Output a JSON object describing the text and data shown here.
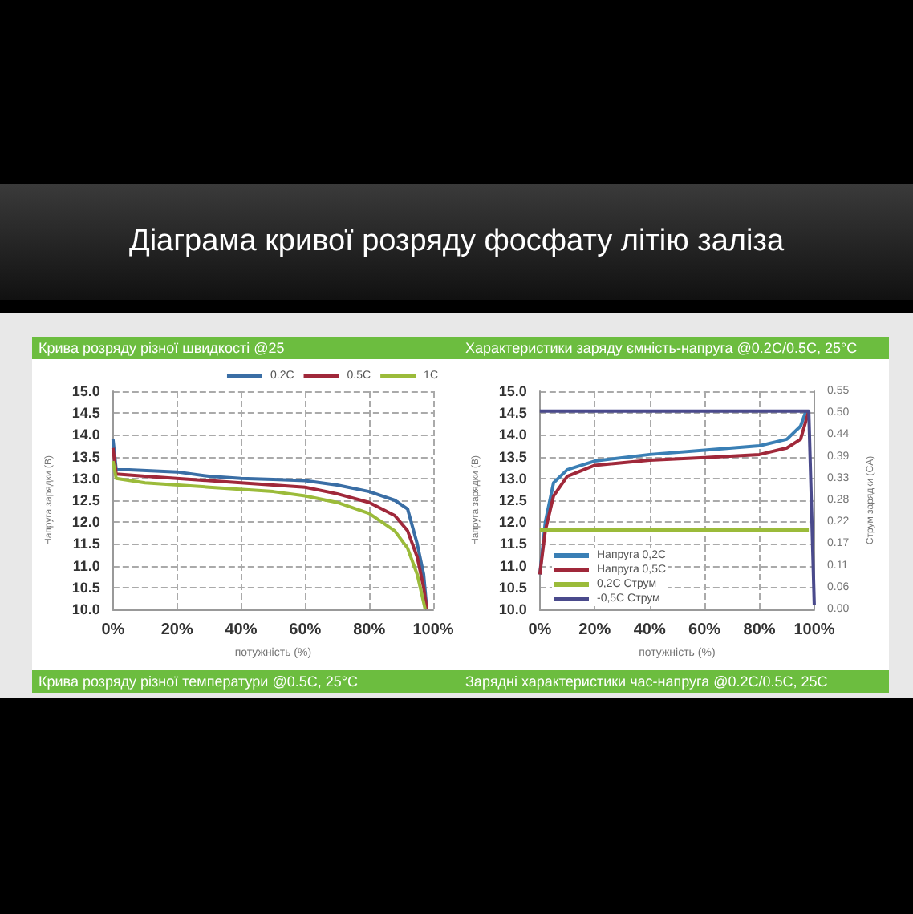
{
  "chart_data": [
    {
      "type": "line",
      "title": "Діаграма кривої розряду фосфату літію заліза",
      "subtitle": "Крива розряду різної швидкості @25",
      "annotations": [
        "Крива розряду різної температури @0.5C, 25°C"
      ],
      "xlabel": "потужність (%)",
      "ylabel": "Напруга зарядки (В)",
      "xlim": [
        0,
        100
      ],
      "xticks": [
        {
          "value": 0,
          "label": "0%"
        },
        {
          "value": 20,
          "label": "20%"
        },
        {
          "value": 40,
          "label": "40%"
        },
        {
          "value": 60,
          "label": "60%"
        },
        {
          "value": 80,
          "label": "80%"
        },
        {
          "value": 100,
          "label": "100%"
        }
      ],
      "ylim": [
        10,
        15
      ],
      "yticks": [
        {
          "value": 10,
          "label": "10.0"
        },
        {
          "value": 10.5,
          "label": "10.5"
        },
        {
          "value": 11,
          "label": "11.0"
        },
        {
          "value": 11.5,
          "label": "11.5"
        },
        {
          "value": 12,
          "label": "12.0"
        },
        {
          "value": 12.5,
          "label": "12.5"
        },
        {
          "value": 13,
          "label": "13.0"
        },
        {
          "value": 13.5,
          "label": "13.5"
        },
        {
          "value": 14,
          "label": "14.0"
        },
        {
          "value": 14.5,
          "label": "14.5"
        },
        {
          "value": 15,
          "label": "15.0"
        }
      ],
      "grid": true,
      "legend": "top right",
      "marker": "none",
      "line_style": "solid",
      "series": [
        {
          "name": "0.2C",
          "color": "#3a6ea5",
          "x": [
            0,
            1,
            5,
            20,
            30,
            40,
            50,
            60,
            70,
            80,
            88,
            92,
            95,
            97,
            98
          ],
          "values": [
            13.9,
            13.2,
            13.2,
            13.15,
            13.05,
            13.0,
            12.98,
            12.95,
            12.85,
            12.7,
            12.5,
            12.3,
            11.5,
            10.8,
            10.0
          ]
        },
        {
          "name": "0.5C",
          "color": "#a0283a",
          "x": [
            0,
            1,
            10,
            30,
            50,
            60,
            70,
            80,
            88,
            92,
            95,
            97,
            98
          ],
          "values": [
            13.7,
            13.1,
            13.05,
            12.95,
            12.85,
            12.8,
            12.65,
            12.45,
            12.15,
            11.8,
            11.2,
            10.5,
            10.0
          ]
        },
        {
          "name": "1C",
          "color": "#9bbb3a",
          "x": [
            0,
            1,
            10,
            30,
            50,
            60,
            70,
            80,
            88,
            92,
            95,
            97.5
          ],
          "values": [
            13.4,
            13.0,
            12.9,
            12.8,
            12.7,
            12.6,
            12.45,
            12.2,
            11.8,
            11.4,
            10.8,
            10.0
          ]
        }
      ]
    },
    {
      "type": "line",
      "title": "Характеристики заряду ємність-напруга @0.2C/0.5C, 25°C",
      "annotations": [
        "Зарядні характеристики час-напруга @0.2C/0.5C, 25C"
      ],
      "xlabel": "потужність (%)",
      "ylabel": "Напруга зарядки (В)",
      "y2label": "Струм зарядки (CA)",
      "xlim": [
        0,
        100
      ],
      "xticks": [
        {
          "value": 0,
          "label": "0%"
        },
        {
          "value": 20,
          "label": "20%"
        },
        {
          "value": 40,
          "label": "40%"
        },
        {
          "value": 60,
          "label": "60%"
        },
        {
          "value": 80,
          "label": "80%"
        },
        {
          "value": 100,
          "label": "100%"
        }
      ],
      "ylim": [
        10,
        15
      ],
      "yticks": [
        {
          "value": 10,
          "label": "10.0"
        },
        {
          "value": 10.5,
          "label": "10.5"
        },
        {
          "value": 11,
          "label": "11.0"
        },
        {
          "value": 11.5,
          "label": "11.5"
        },
        {
          "value": 12,
          "label": "12.0"
        },
        {
          "value": 12.5,
          "label": "12.5"
        },
        {
          "value": 13,
          "label": "13.0"
        },
        {
          "value": 13.5,
          "label": "13.5"
        },
        {
          "value": 14,
          "label": "14.0"
        },
        {
          "value": 14.5,
          "label": "14.5"
        },
        {
          "value": 15,
          "label": "15.0"
        }
      ],
      "y2lim": [
        0,
        0.55
      ],
      "y2ticks": [
        {
          "value": 0,
          "label": "0.00"
        },
        {
          "value": 0.055,
          "label": "0.06"
        },
        {
          "value": 0.11,
          "label": "0.11"
        },
        {
          "value": 0.165,
          "label": "0.17"
        },
        {
          "value": 0.22,
          "label": "0.22"
        },
        {
          "value": 0.275,
          "label": "0.28"
        },
        {
          "value": 0.33,
          "label": "0.33"
        },
        {
          "value": 0.385,
          "label": "0.39"
        },
        {
          "value": 0.44,
          "label": "0.44"
        },
        {
          "value": 0.495,
          "label": "0.50"
        },
        {
          "value": 0.55,
          "label": "0.55"
        }
      ],
      "grid": true,
      "legend": "bottom left",
      "marker": "none",
      "line_style": "solid",
      "series": [
        {
          "name": "Напруга 0,2C",
          "color": "#3a7fb5",
          "x": [
            0,
            2,
            5,
            10,
            20,
            40,
            60,
            80,
            90,
            95,
            97
          ],
          "values": [
            10.8,
            12.0,
            12.9,
            13.2,
            13.4,
            13.55,
            13.65,
            13.75,
            13.9,
            14.2,
            14.55
          ]
        },
        {
          "name": "Напруга 0,5C",
          "color": "#a0283a",
          "x": [
            0,
            2,
            5,
            10,
            20,
            40,
            60,
            80,
            90,
            95,
            98
          ],
          "values": [
            10.8,
            11.8,
            12.6,
            13.05,
            13.3,
            13.42,
            13.48,
            13.55,
            13.7,
            13.9,
            14.55
          ]
        },
        {
          "name": "0,2C Струм",
          "color": "#9bbb3a",
          "axis": "y2",
          "x": [
            0,
            98
          ],
          "values": [
            0.2,
            0.2
          ]
        },
        {
          "name": "-0,5C Струм",
          "color": "#4a4a8c",
          "axis": "y2",
          "x": [
            0,
            97,
            98,
            100
          ],
          "values": [
            0.5,
            0.5,
            0.5,
            0.01
          ]
        }
      ]
    }
  ]
}
